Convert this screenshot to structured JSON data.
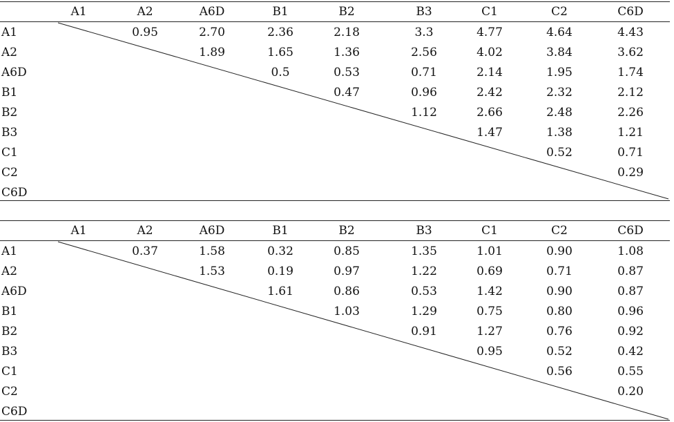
{
  "tables": [
    {
      "columns": [
        "A1",
        "A2",
        "A6D",
        "B1",
        "B2",
        "B3",
        "C1",
        "C2",
        "C6D"
      ],
      "rows": [
        {
          "label": "A1",
          "values": [
            "",
            "0.95",
            "2.70",
            "2.36",
            "2.18",
            "3.3",
            "4.77",
            "4.64",
            "4.43"
          ]
        },
        {
          "label": "A2",
          "values": [
            "",
            "",
            "1.89",
            "1.65",
            "1.36",
            "2.56",
            "4.02",
            "3.84",
            "3.62"
          ]
        },
        {
          "label": "A6D",
          "values": [
            "",
            "",
            "",
            "0.5",
            "0.53",
            "0.71",
            "2.14",
            "1.95",
            "1.74"
          ]
        },
        {
          "label": "B1",
          "values": [
            "",
            "",
            "",
            "",
            "0.47",
            "0.96",
            "2.42",
            "2.32",
            "2.12"
          ]
        },
        {
          "label": "B2",
          "values": [
            "",
            "",
            "",
            "",
            "",
            "1.12",
            "2.66",
            "2.48",
            "2.26"
          ]
        },
        {
          "label": "B3",
          "values": [
            "",
            "",
            "",
            "",
            "",
            "",
            "1.47",
            "1.38",
            "1.21"
          ]
        },
        {
          "label": "C1",
          "values": [
            "",
            "",
            "",
            "",
            "",
            "",
            "",
            "0.52",
            "0.71"
          ]
        },
        {
          "label": "C2",
          "values": [
            "",
            "",
            "",
            "",
            "",
            "",
            "",
            "",
            "0.29"
          ]
        },
        {
          "label": "C6D",
          "values": [
            "",
            "",
            "",
            "",
            "",
            "",
            "",
            "",
            ""
          ]
        }
      ]
    },
    {
      "columns": [
        "A1",
        "A2",
        "A6D",
        "B1",
        "B2",
        "B3",
        "C1",
        "C2",
        "C6D"
      ],
      "rows": [
        {
          "label": "A1",
          "values": [
            "",
            "0.37",
            "1.58",
            "0.32",
            "0.85",
            "1.35",
            "1.01",
            "0.90",
            "1.08"
          ]
        },
        {
          "label": "A2",
          "values": [
            "",
            "",
            "1.53",
            "0.19",
            "0.97",
            "1.22",
            "0.69",
            "0.71",
            "0.87"
          ]
        },
        {
          "label": "A6D",
          "values": [
            "",
            "",
            "",
            "1.61",
            "0.86",
            "0.53",
            "1.42",
            "0.90",
            "0.87"
          ]
        },
        {
          "label": "B1",
          "values": [
            "",
            "",
            "",
            "",
            "1.03",
            "1.29",
            "0.75",
            "0.80",
            "0.96"
          ]
        },
        {
          "label": "B2",
          "values": [
            "",
            "",
            "",
            "",
            "",
            "0.91",
            "1.27",
            "0.76",
            "0.92"
          ]
        },
        {
          "label": "B3",
          "values": [
            "",
            "",
            "",
            "",
            "",
            "",
            "0.95",
            "0.52",
            "0.42"
          ]
        },
        {
          "label": "C1",
          "values": [
            "",
            "",
            "",
            "",
            "",
            "",
            "",
            "0.56",
            "0.55"
          ]
        },
        {
          "label": "C2",
          "values": [
            "",
            "",
            "",
            "",
            "",
            "",
            "",
            "",
            "0.20"
          ]
        },
        {
          "label": "C6D",
          "values": [
            "",
            "",
            "",
            "",
            "",
            "",
            "",
            "",
            ""
          ]
        }
      ]
    }
  ]
}
